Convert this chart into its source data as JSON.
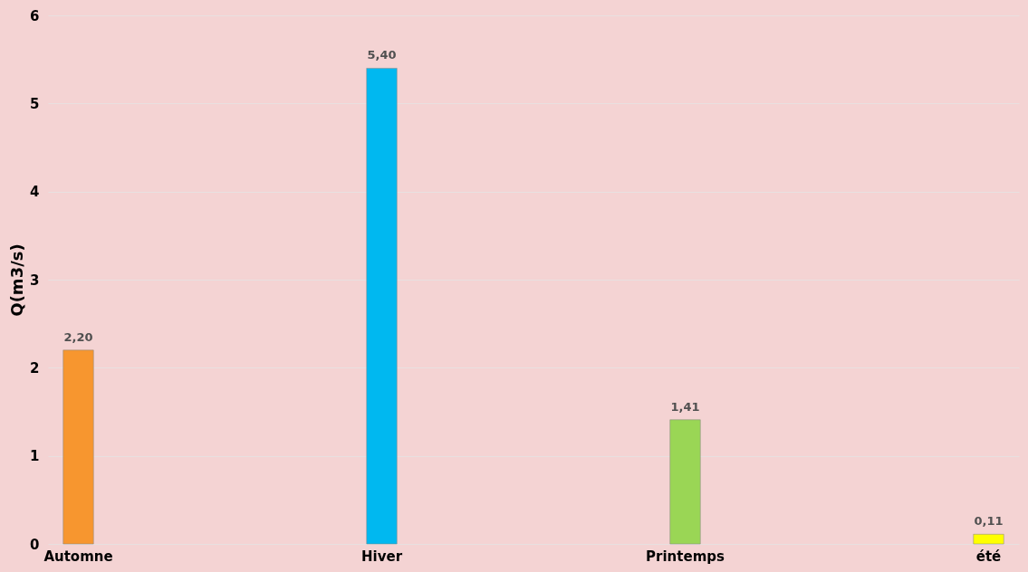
{
  "chart_data": {
    "type": "bar",
    "ylabel": "Q(m3/s)",
    "categories": [
      "Automne",
      "Hiver",
      "Printemps",
      "été"
    ],
    "values": [
      2.2,
      5.4,
      1.41,
      0.11
    ],
    "value_labels": [
      "2,20",
      "5,40",
      "1,41",
      "0,11"
    ],
    "colors": [
      "#f7962f",
      "#00b8f0",
      "#9ad655",
      "#ffff00"
    ],
    "ylim": [
      0,
      6
    ],
    "yticks": [
      0,
      1,
      2,
      3,
      4,
      5,
      6
    ],
    "grid": "y"
  }
}
